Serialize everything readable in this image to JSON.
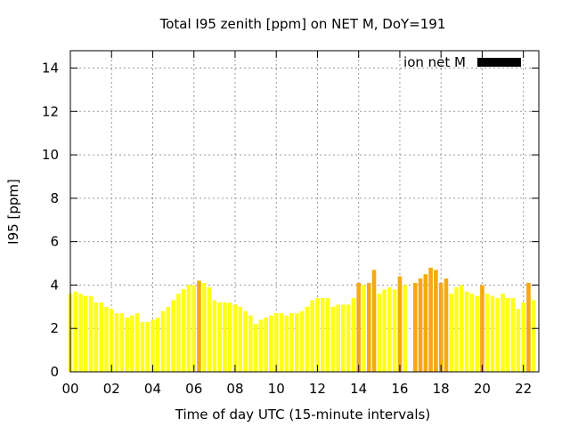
{
  "chart_data": {
    "type": "bar",
    "title": "Total I95 zenith [ppm] on NET M, DoY=191",
    "xlabel": "Time of day UTC (15-minute intervals)",
    "ylabel": "I95 [ppm]",
    "x_range_hours": [
      0,
      22.75
    ],
    "x_tick_values": [
      0,
      2,
      4,
      6,
      8,
      10,
      12,
      14,
      16,
      18,
      20,
      22
    ],
    "x_tick_labels": [
      "00",
      "02",
      "04",
      "06",
      "08",
      "10",
      "12",
      "14",
      "16",
      "18",
      "20",
      "22"
    ],
    "ylim": [
      0,
      14.8
    ],
    "y_tick_values": [
      0,
      2,
      4,
      6,
      8,
      10,
      12,
      14
    ],
    "y_tick_labels": [
      "0",
      "2",
      "4",
      "6",
      "8",
      "10",
      "12",
      "14"
    ],
    "grid": true,
    "legend": {
      "position": "top-right",
      "label": "ion net M",
      "color": "#000000"
    },
    "colors": {
      "normal": "#ffff1a",
      "elevated": "#f5a90f",
      "grid": "#999999"
    },
    "interval_hours": 0.25,
    "values": [
      3.6,
      3.7,
      3.6,
      3.5,
      3.5,
      3.2,
      3.2,
      3.0,
      2.9,
      2.7,
      2.7,
      2.5,
      2.6,
      2.7,
      2.3,
      2.3,
      2.4,
      2.5,
      2.8,
      3.0,
      3.3,
      3.6,
      3.8,
      4.0,
      4.0,
      4.2,
      4.1,
      3.9,
      3.3,
      3.2,
      3.2,
      3.2,
      3.1,
      3.0,
      2.8,
      2.6,
      2.2,
      2.4,
      2.5,
      2.6,
      2.7,
      2.7,
      2.6,
      2.7,
      2.7,
      2.8,
      3.0,
      3.3,
      3.4,
      3.4,
      3.4,
      3.0,
      3.1,
      3.1,
      3.1,
      3.4,
      4.1,
      4.0,
      4.1,
      4.7,
      3.6,
      3.8,
      3.9,
      3.8,
      4.4,
      4.0,
      0,
      4.1,
      4.3,
      4.5,
      4.8,
      4.7,
      4.1,
      4.3,
      3.6,
      3.9,
      4.0,
      3.7,
      3.6,
      3.5,
      4.0,
      3.6,
      3.5,
      3.4,
      3.6,
      3.4,
      3.4,
      2.9,
      3.2,
      4.1,
      3.3
    ],
    "elevated": [
      0,
      0,
      0,
      0,
      0,
      0,
      0,
      0,
      0,
      0,
      0,
      0,
      0,
      0,
      0,
      0,
      0,
      0,
      0,
      0,
      0,
      0,
      0,
      0,
      0,
      1,
      0,
      0,
      0,
      0,
      0,
      0,
      0,
      0,
      0,
      0,
      0,
      0,
      0,
      0,
      0,
      0,
      0,
      0,
      0,
      0,
      0,
      0,
      0,
      0,
      0,
      0,
      0,
      0,
      0,
      0,
      1,
      0,
      1,
      1,
      0,
      0,
      0,
      0,
      1,
      0,
      0,
      1,
      1,
      1,
      1,
      1,
      1,
      1,
      0,
      0,
      0,
      0,
      0,
      0,
      1,
      0,
      0,
      0,
      0,
      0,
      0,
      0,
      0,
      1,
      0
    ]
  }
}
